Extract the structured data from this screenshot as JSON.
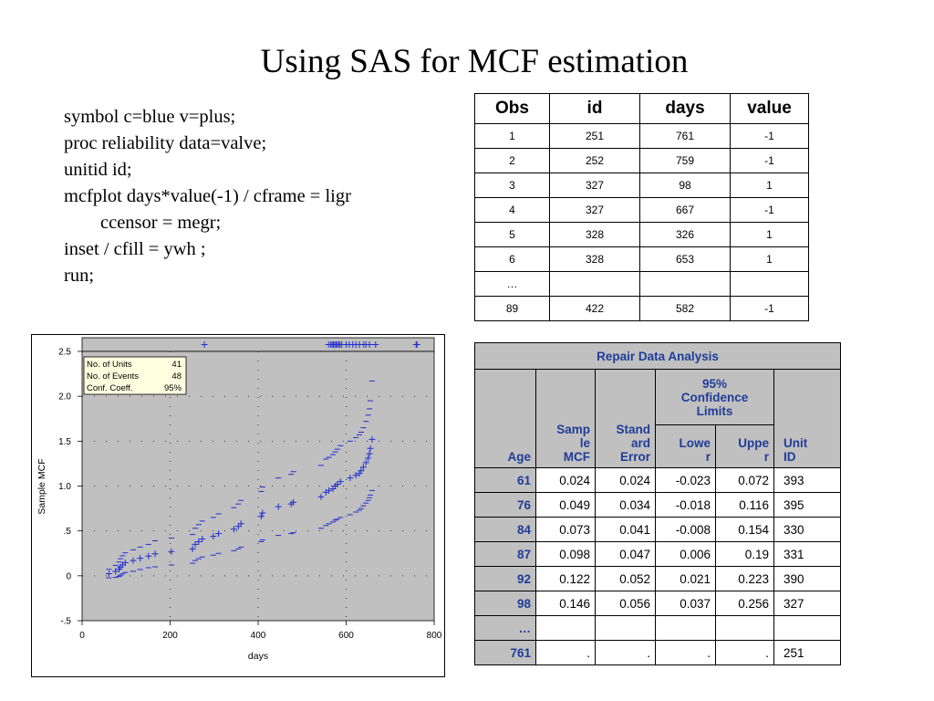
{
  "slide": {
    "title": "Using SAS for MCF estimation",
    "code_lines": [
      "symbol c=blue v=plus;",
      "proc reliability data=valve;",
      "unitid id;",
      "mcfplot days*value(-1) / cframe = ligr",
      "ccensor = megr;",
      "inset / cfill = ywh ;",
      "run;"
    ]
  },
  "data_table": {
    "headers": [
      "Obs",
      "id",
      "days",
      "value"
    ],
    "rows": [
      [
        "1",
        "251",
        "761",
        "-1"
      ],
      [
        "2",
        "252",
        "759",
        "-1"
      ],
      [
        "3",
        "327",
        "98",
        "1"
      ],
      [
        "4",
        "327",
        "667",
        "-1"
      ],
      [
        "5",
        "328",
        "326",
        "1"
      ],
      [
        "6",
        "328",
        "653",
        "1"
      ],
      [
        "…",
        "",
        "",
        ""
      ],
      [
        "89",
        "422",
        "582",
        "-1"
      ]
    ]
  },
  "repair_table": {
    "title": "Repair Data Analysis",
    "headers": {
      "age": "Age",
      "sample_mcf": "Sample MCF",
      "sample_mcf_lines": [
        "Samp",
        "le",
        "MCF"
      ],
      "std_error": "Standard Error",
      "std_error_lines": [
        "Stand",
        "ard",
        "Error"
      ],
      "ci": "95% Confidence Limits",
      "ci_lines": [
        "95%",
        "Confidence",
        "Limits"
      ],
      "lower_lines": [
        "Lowe",
        "r"
      ],
      "upper_lines": [
        "Uppe",
        "r"
      ],
      "unit_lines": [
        "Unit",
        "ID"
      ]
    },
    "rows": [
      {
        "age": "61",
        "mcf": "0.024",
        "se": "0.024",
        "lower": "-0.023",
        "upper": "0.072",
        "unit": "393"
      },
      {
        "age": "76",
        "mcf": "0.049",
        "se": "0.034",
        "lower": "-0.018",
        "upper": "0.116",
        "unit": "395"
      },
      {
        "age": "84",
        "mcf": "0.073",
        "se": "0.041",
        "lower": "-0.008",
        "upper": "0.154",
        "unit": "330"
      },
      {
        "age": "87",
        "mcf": "0.098",
        "se": "0.047",
        "lower": "0.006",
        "upper": "0.19",
        "unit": "331"
      },
      {
        "age": "92",
        "mcf": "0.122",
        "se": "0.052",
        "lower": "0.021",
        "upper": "0.223",
        "unit": "390"
      },
      {
        "age": "98",
        "mcf": "0.146",
        "se": "0.056",
        "lower": "0.037",
        "upper": "0.256",
        "unit": "327"
      },
      {
        "age": "…",
        "mcf": "",
        "se": "",
        "lower": "",
        "upper": "",
        "unit": ""
      },
      {
        "age": "761",
        "mcf": ".",
        "se": ".",
        "lower": ".",
        "upper": ".",
        "unit": "251"
      }
    ]
  },
  "chart_data": {
    "type": "scatter",
    "xlabel": "days",
    "ylabel": "Sample MCF",
    "xlim": [
      0,
      800
    ],
    "ylim": [
      -0.5,
      2.5
    ],
    "xticks": [
      0,
      200,
      400,
      600,
      800
    ],
    "xtick_labels": [
      "0",
      "200",
      "400",
      "600",
      "800"
    ],
    "yticks": [
      -0.5,
      0,
      0.5,
      1.0,
      1.5,
      2.0,
      2.5
    ],
    "ytick_labels": [
      "-.5",
      "0",
      ".5",
      "1.0",
      "1.5",
      "2.0",
      "2.5"
    ],
    "colors": {
      "frame": "#c0c0c0",
      "points": "#1f2fd0",
      "inset": "#ffffe0"
    },
    "inset": [
      {
        "label": "No. of Units",
        "value": "41"
      },
      {
        "label": "No. of Events",
        "value": "48"
      },
      {
        "label": "Conf. Coeff.",
        "value": "95%"
      }
    ],
    "censor_times": [
      278,
      560,
      565,
      568,
      571,
      574,
      577,
      580,
      583,
      586,
      590,
      600,
      607,
      615,
      622,
      630,
      640,
      645,
      653,
      667,
      759,
      761
    ],
    "series": [
      {
        "x": [
          61,
          76,
          84,
          87,
          92,
          98,
          116,
          132,
          151,
          166,
          203,
          251,
          257,
          265,
          273,
          298,
          310,
          345,
          355,
          361,
          407,
          410,
          446,
          475,
          480,
          543,
          554,
          561,
          570,
          575,
          580,
          587,
          609,
          622,
          630,
          634,
          639,
          645,
          650,
          653,
          655,
          659
        ],
        "mcf": [
          0.024,
          0.049,
          0.073,
          0.098,
          0.122,
          0.146,
          0.17,
          0.195,
          0.22,
          0.245,
          0.27,
          0.3,
          0.35,
          0.38,
          0.41,
          0.44,
          0.47,
          0.52,
          0.55,
          0.58,
          0.66,
          0.7,
          0.77,
          0.8,
          0.82,
          0.88,
          0.93,
          0.95,
          0.97,
          1.0,
          1.02,
          1.05,
          1.09,
          1.12,
          1.14,
          1.17,
          1.21,
          1.26,
          1.31,
          1.36,
          1.42,
          1.52
        ],
        "lower": [
          -0.023,
          -0.018,
          -0.008,
          0.006,
          0.021,
          0.037,
          0.05,
          0.07,
          0.09,
          0.1,
          0.12,
          0.14,
          0.17,
          0.19,
          0.21,
          0.23,
          0.25,
          0.28,
          0.3,
          0.32,
          0.38,
          0.4,
          0.45,
          0.47,
          0.48,
          0.53,
          0.56,
          0.58,
          0.6,
          0.62,
          0.63,
          0.65,
          0.68,
          0.71,
          0.73,
          0.75,
          0.78,
          0.81,
          0.84,
          0.87,
          0.9,
          0.95
        ],
        "upper": [
          0.072,
          0.116,
          0.154,
          0.19,
          0.223,
          0.256,
          0.29,
          0.32,
          0.35,
          0.39,
          0.42,
          0.46,
          0.53,
          0.57,
          0.61,
          0.65,
          0.69,
          0.76,
          0.8,
          0.84,
          0.94,
          0.99,
          1.09,
          1.13,
          1.16,
          1.23,
          1.3,
          1.32,
          1.35,
          1.38,
          1.41,
          1.45,
          1.5,
          1.54,
          1.57,
          1.6,
          1.65,
          1.72,
          1.79,
          1.86,
          1.95,
          2.17
        ]
      }
    ]
  }
}
